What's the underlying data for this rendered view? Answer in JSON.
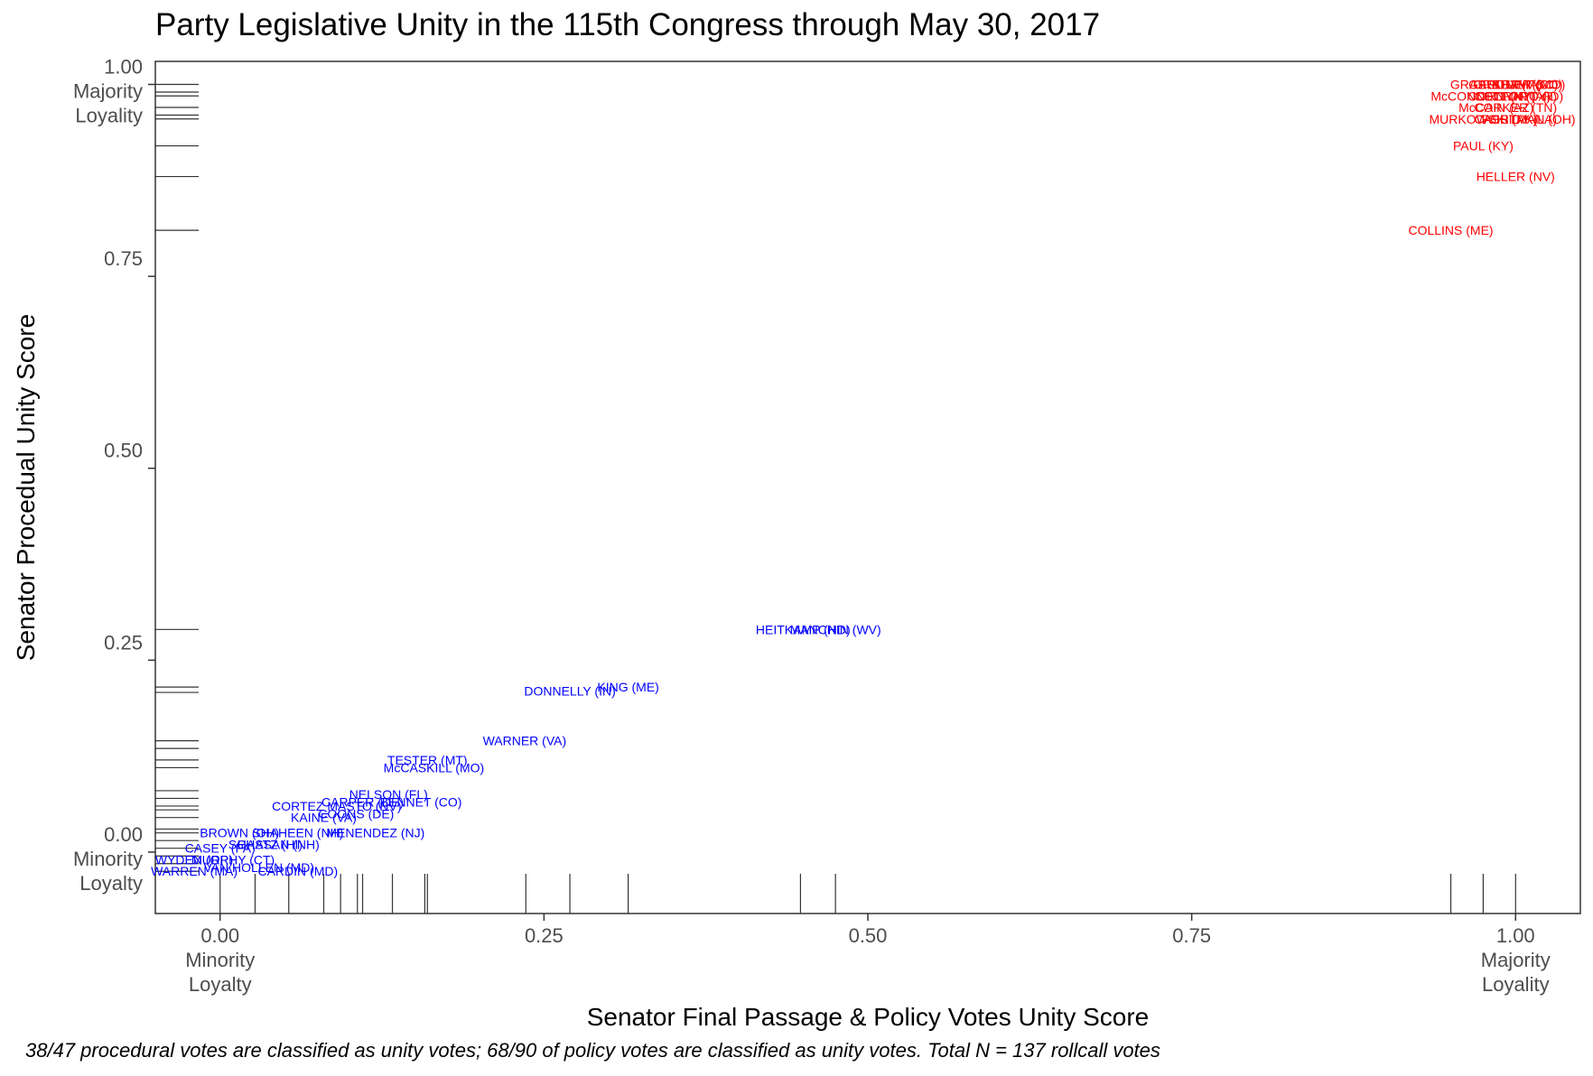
{
  "chart_data": {
    "type": "scatter",
    "title": "Party Legislative Unity in the 115th Congress through May 30, 2017",
    "xlabel": "Senator Final Passage & Policy Votes Unity Score",
    "ylabel": "Senator Procedual Unity Score",
    "caption": "38/47 procedural votes are classified as unity votes; 68/90 of policy votes are classified as unity votes. Total N = 137 rollcall votes",
    "xlim": [
      -0.05,
      1.05
    ],
    "ylim": [
      -0.08,
      1.03
    ],
    "grid": false,
    "x_ticks": [
      {
        "value": 0,
        "label": "0.00",
        "sublabel": [
          "Minority",
          "Loyalty"
        ]
      },
      {
        "value": 0.25,
        "label": "0.25"
      },
      {
        "value": 0.5,
        "label": "0.50"
      },
      {
        "value": 0.75,
        "label": "0.75"
      },
      {
        "value": 1,
        "label": "1.00",
        "sublabel": [
          "Majority",
          "Loyality"
        ]
      }
    ],
    "y_ticks": [
      {
        "value": 1,
        "label": "1.00",
        "sublabel": [
          "Majority",
          "Loyality"
        ]
      },
      {
        "value": 0.75,
        "label": "0.75"
      },
      {
        "value": 0.5,
        "label": "0.50"
      },
      {
        "value": 0.25,
        "label": "0.25"
      },
      {
        "value": 0,
        "label": "0.00",
        "sublabel": [
          "Minority",
          "Loyalty"
        ]
      }
    ],
    "colors": {
      "republican": "#ff0000",
      "democrat": "#0000ff",
      "rug": "#333333"
    },
    "series": [
      {
        "party": "republican",
        "points": [
          {
            "label": "COLLINS (ME)",
            "x": 0.95,
            "y": 0.81
          },
          {
            "label": "HELLER (NV)",
            "x": 1.0,
            "y": 0.88
          },
          {
            "label": "PAUL (KY)",
            "x": 0.975,
            "y": 0.92
          },
          {
            "label": "MURKOWSKI (AK)",
            "x": 0.975,
            "y": 0.955
          },
          {
            "label": "CASSIDY (LA)",
            "x": 1.0,
            "y": 0.955
          },
          {
            "label": "PORTMAN (OH)",
            "x": 1.01,
            "y": 0.955
          },
          {
            "label": "McCAIN (AZ)",
            "x": 0.985,
            "y": 0.97
          },
          {
            "label": "CORKER (TN)",
            "x": 1.0,
            "y": 0.97
          },
          {
            "label": "McCONNELL (KY)",
            "x": 0.975,
            "y": 0.985
          },
          {
            "label": "CORNYN (TX)",
            "x": 0.995,
            "y": 0.985
          },
          {
            "label": "COTTON (AR)",
            "x": 1.0,
            "y": 0.985
          },
          {
            "label": "CRAPO (ID)",
            "x": 1.01,
            "y": 0.985
          },
          {
            "label": "GRASSLEY (IA)",
            "x": 0.985,
            "y": 1.0
          },
          {
            "label": "GRAHAM (SC)",
            "x": 1.0,
            "y": 1.0
          },
          {
            "label": "GARDNER (CO)",
            "x": 1.0,
            "y": 1.0
          },
          {
            "label": "BLUNT (MO)",
            "x": 1.01,
            "y": 1.0
          }
        ]
      },
      {
        "party": "democrat",
        "points": [
          {
            "label": "HEITKAMP (ND)",
            "x": 0.45,
            "y": 0.29
          },
          {
            "label": "MANCHIN (WV)",
            "x": 0.475,
            "y": 0.29
          },
          {
            "label": "KING (ME)",
            "x": 0.315,
            "y": 0.215
          },
          {
            "label": "DONNELLY (IN)",
            "x": 0.27,
            "y": 0.21
          },
          {
            "label": "WARNER (VA)",
            "x": 0.235,
            "y": 0.145
          },
          {
            "label": "TESTER (MT)",
            "x": 0.16,
            "y": 0.12
          },
          {
            "label": "McCASKILL (MO)",
            "x": 0.165,
            "y": 0.11
          },
          {
            "label": "NELSON (FL)",
            "x": 0.13,
            "y": 0.075
          },
          {
            "label": "CARPER (DE)",
            "x": 0.11,
            "y": 0.065
          },
          {
            "label": "BENNET (CO)",
            "x": 0.155,
            "y": 0.065
          },
          {
            "label": "CORTEZ MASTO (NV)",
            "x": 0.09,
            "y": 0.06
          },
          {
            "label": "COONS (DE)",
            "x": 0.105,
            "y": 0.05
          },
          {
            "label": "KAINE (VA)",
            "x": 0.08,
            "y": 0.045
          },
          {
            "label": "MENENDEZ (NJ)",
            "x": 0.12,
            "y": 0.025
          },
          {
            "label": "SHAHEEN (NH)",
            "x": 0.06,
            "y": 0.025
          },
          {
            "label": "BROWN (OH)",
            "x": 0.015,
            "y": 0.025
          },
          {
            "label": "CASEY (PA)",
            "x": 0.0,
            "y": 0.005
          },
          {
            "label": "SCHATZ (HI)",
            "x": 0.035,
            "y": 0.01
          },
          {
            "label": "HASSAN (NH)",
            "x": 0.045,
            "y": 0.01
          },
          {
            "label": "MURPHY (CT)",
            "x": 0.01,
            "y": -0.01
          },
          {
            "label": "WYDEN (OR)",
            "x": -0.02,
            "y": -0.01
          },
          {
            "label": "WARREN (MA)",
            "x": -0.02,
            "y": -0.025
          },
          {
            "label": "CARDIN (MD)",
            "x": 0.06,
            "y": -0.025
          },
          {
            "label": "VAN HOLLEN (MD)",
            "x": 0.03,
            "y": -0.02
          }
        ]
      }
    ],
    "rug_x": [
      0.0,
      0.027,
      0.053,
      0.08,
      0.093,
      0.106,
      0.11,
      0.133,
      0.158,
      0.16,
      0.236,
      0.27,
      0.315,
      0.448,
      0.475,
      0.95,
      0.975,
      1.0
    ],
    "rug_y": [
      1.0,
      0.99,
      0.985,
      0.97,
      0.96,
      0.955,
      0.92,
      0.88,
      0.81,
      0.29,
      0.215,
      0.208,
      0.145,
      0.135,
      0.12,
      0.11,
      0.08,
      0.07,
      0.06,
      0.055,
      0.045,
      0.03,
      0.025,
      0.015,
      0.005,
      -0.005,
      -0.015,
      -0.025
    ]
  }
}
